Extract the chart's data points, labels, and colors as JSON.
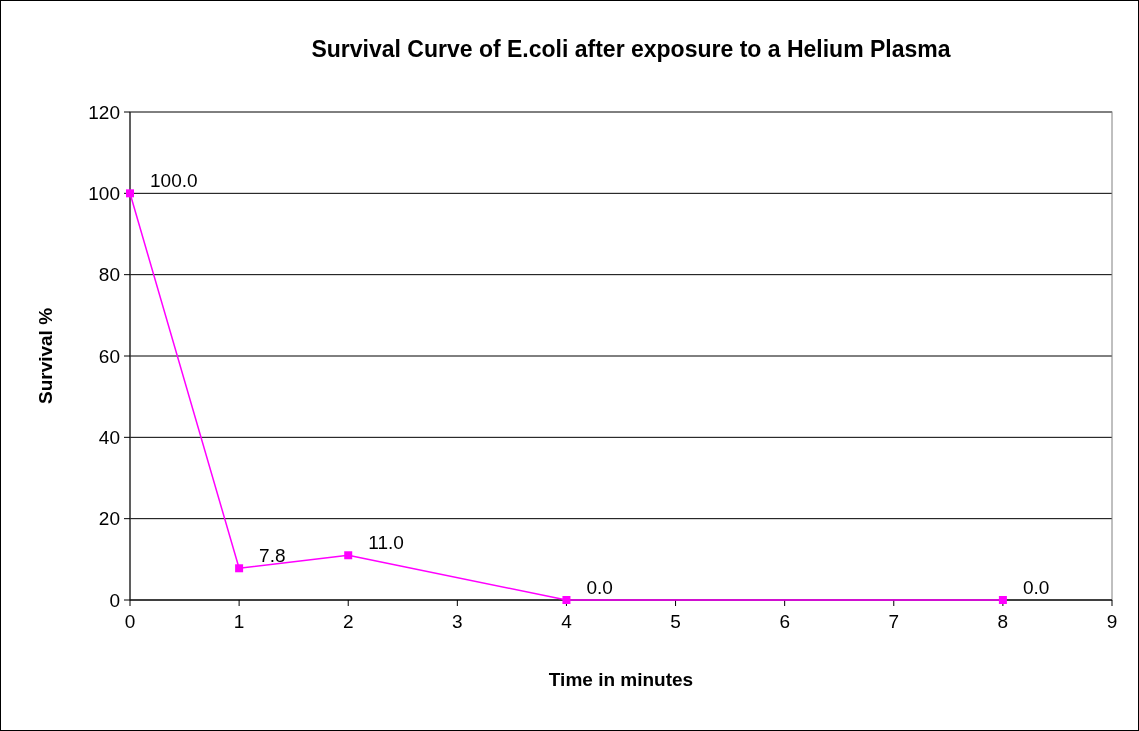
{
  "chart_data": {
    "type": "line",
    "title": "Survival Curve of E.coli after exposure to a Helium Plasma",
    "xlabel": "Time in minutes",
    "ylabel": "Survival %",
    "x": [
      0,
      1,
      2,
      4,
      8
    ],
    "series": [
      {
        "color": "#ff00ff",
        "values": [
          100,
          7.8,
          11.0,
          0.0,
          0.0
        ],
        "value_labels": [
          "100.0",
          "7.8",
          "11.0",
          "0.0",
          "0.0"
        ]
      }
    ],
    "xlim": [
      0,
      9
    ],
    "xticks": [
      0,
      1,
      2,
      3,
      4,
      5,
      6,
      7,
      8,
      9
    ],
    "ylim": [
      0,
      120
    ],
    "yticks": [
      0,
      20,
      40,
      60,
      80,
      100,
      120
    ],
    "grid": "y",
    "marker": "square",
    "line_style": "solid"
  }
}
